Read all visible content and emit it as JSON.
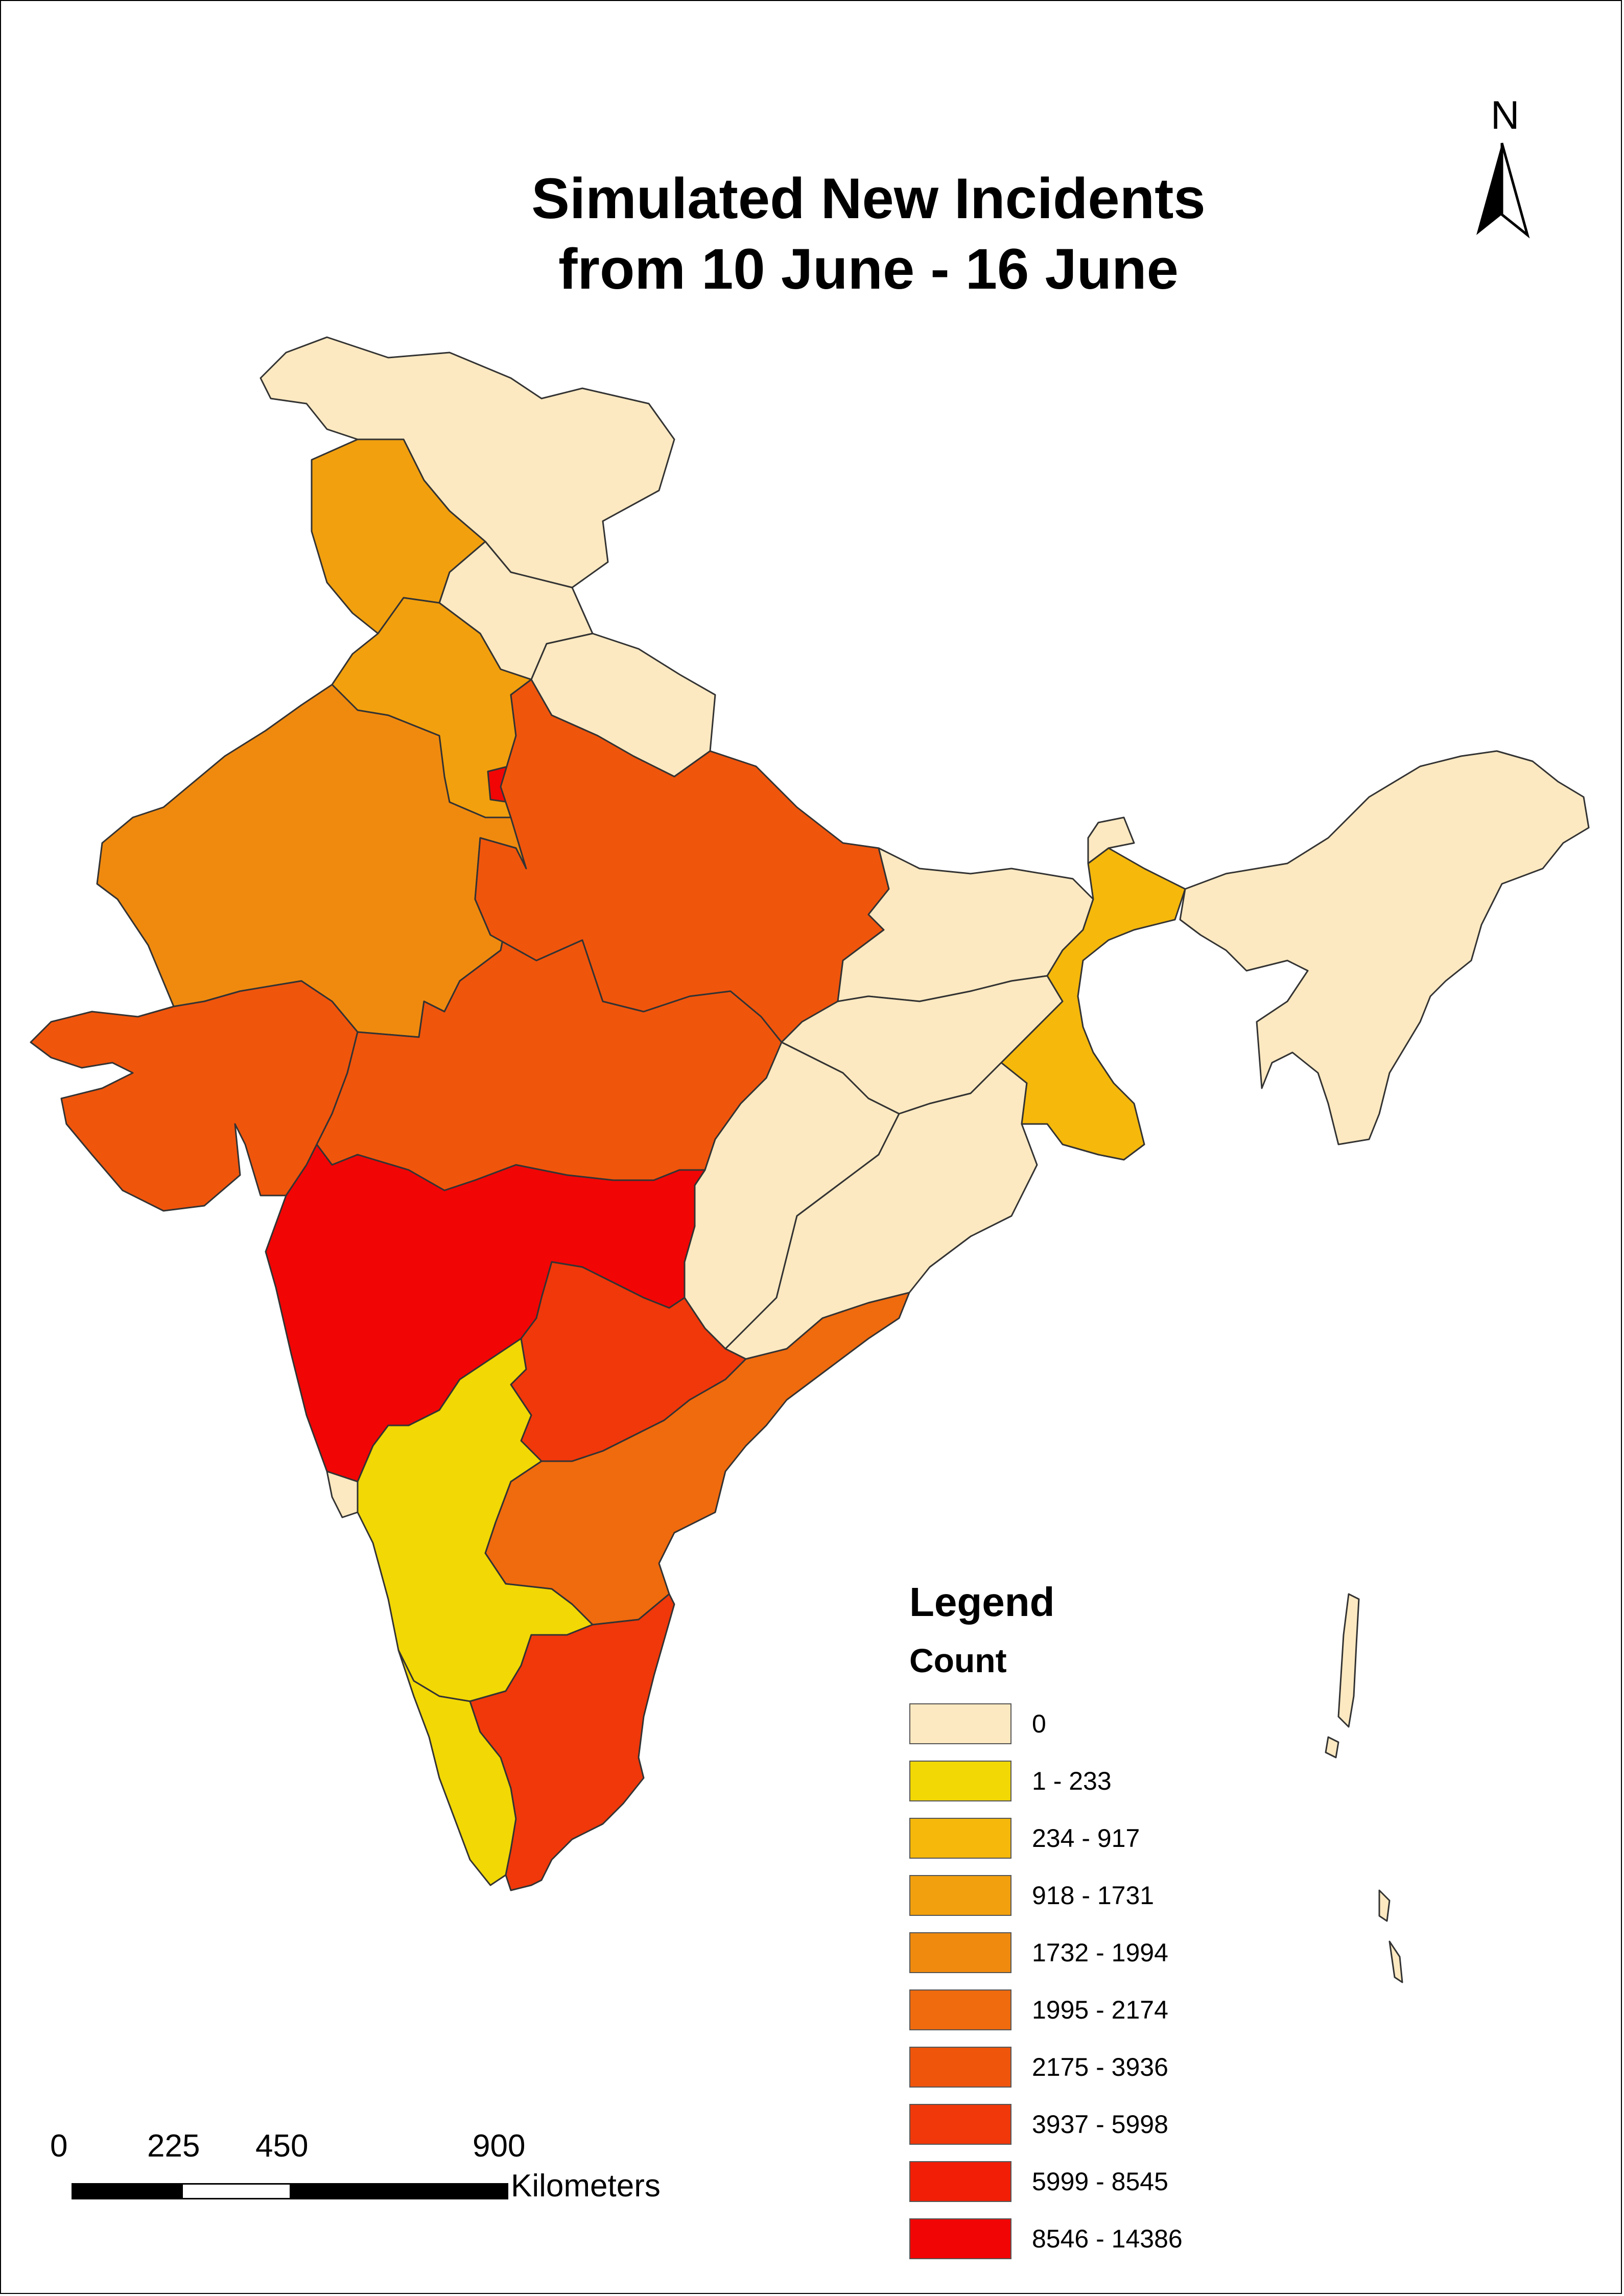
{
  "title_line1": "Simulated New Incidents",
  "title_line2": "from 10 June - 16 June",
  "north_arrow": {
    "label": "N",
    "icon": "north-arrow-icon"
  },
  "legend": {
    "title": "Legend",
    "subtitle": "Count",
    "classes": [
      {
        "label": "0",
        "color": "#fde9c1"
      },
      {
        "label": "1 - 233",
        "color": "#f2d805"
      },
      {
        "label": "234 - 917",
        "color": "#f5b80b"
      },
      {
        "label": "918 - 1731",
        "color": "#f2a00e"
      },
      {
        "label": "1732 - 1994",
        "color": "#f08a0f"
      },
      {
        "label": "1995 - 2174",
        "color": "#f06a0e"
      },
      {
        "label": "2175 - 3936",
        "color": "#f0550c"
      },
      {
        "label": "3937 - 5998",
        "color": "#f0380a"
      },
      {
        "label": "5999 - 8545",
        "color": "#f21e06"
      },
      {
        "label": "8546 - 14386",
        "color": "#f20505"
      }
    ]
  },
  "regions": [
    {
      "name": "jammu-kashmir",
      "cls": 0
    },
    {
      "name": "himachal-pradesh",
      "cls": 0
    },
    {
      "name": "uttarakhand",
      "cls": 0
    },
    {
      "name": "punjab",
      "cls": 3
    },
    {
      "name": "haryana",
      "cls": 3
    },
    {
      "name": "delhi",
      "cls": 9
    },
    {
      "name": "rajasthan",
      "cls": 4
    },
    {
      "name": "gujarat",
      "cls": 6
    },
    {
      "name": "madhya-pradesh",
      "cls": 6
    },
    {
      "name": "uttar-pradesh",
      "cls": 6
    },
    {
      "name": "bihar",
      "cls": 0
    },
    {
      "name": "jharkhand",
      "cls": 0
    },
    {
      "name": "chhattisgarh",
      "cls": 0
    },
    {
      "name": "odisha",
      "cls": 0
    },
    {
      "name": "west-bengal",
      "cls": 2
    },
    {
      "name": "sikkim",
      "cls": 0
    },
    {
      "name": "northeast",
      "cls": 0
    },
    {
      "name": "maharashtra",
      "cls": 9
    },
    {
      "name": "telangana",
      "cls": 7
    },
    {
      "name": "andhra-pradesh",
      "cls": 5
    },
    {
      "name": "karnataka",
      "cls": 1
    },
    {
      "name": "goa",
      "cls": 0
    },
    {
      "name": "kerala",
      "cls": 1
    },
    {
      "name": "tamil-nadu",
      "cls": 7
    },
    {
      "name": "andaman-nicobar",
      "cls": 0
    }
  ],
  "scale_bar": {
    "ticks": [
      "0",
      "225",
      "450",
      "900"
    ],
    "units": "Kilometers"
  }
}
